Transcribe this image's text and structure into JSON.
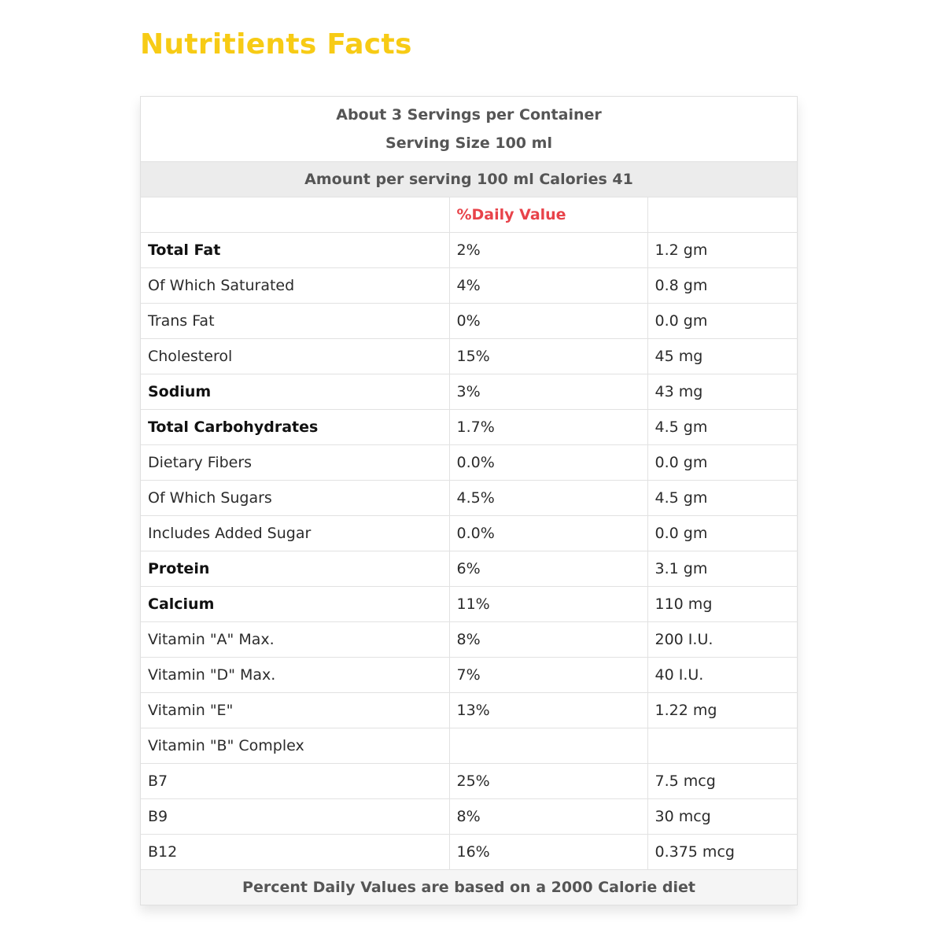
{
  "title": "Nutritients Facts",
  "servings": {
    "per_container": "About 3 Servings per Container",
    "size": "Serving Size 100 ml"
  },
  "amount_line": "Amount per serving 100 ml Calories 41",
  "header": {
    "col1": "",
    "col2": "%Daily Value",
    "col3": ""
  },
  "rows": [
    {
      "nutrient": "Total Fat",
      "dv": "2%",
      "amount": "1.2 gm",
      "bold": true
    },
    {
      "nutrient": "Of Which Saturated",
      "dv": "4%",
      "amount": "0.8 gm",
      "bold": false
    },
    {
      "nutrient": "Trans Fat",
      "dv": "0%",
      "amount": "0.0 gm",
      "bold": false
    },
    {
      "nutrient": "Cholesterol",
      "dv": "15%",
      "amount": "45 mg",
      "bold": false
    },
    {
      "nutrient": "Sodium",
      "dv": "3%",
      "amount": "43 mg",
      "bold": true
    },
    {
      "nutrient": "Total Carbohydrates",
      "dv": "1.7%",
      "amount": "4.5 gm",
      "bold": true
    },
    {
      "nutrient": "Dietary Fibers",
      "dv": "0.0%",
      "amount": "0.0 gm",
      "bold": false
    },
    {
      "nutrient": "Of Which Sugars",
      "dv": "4.5%",
      "amount": "4.5 gm",
      "bold": false
    },
    {
      "nutrient": "Includes Added Sugar",
      "dv": "0.0%",
      "amount": "0.0 gm",
      "bold": false
    },
    {
      "nutrient": "Protein",
      "dv": "6%",
      "amount": "3.1 gm",
      "bold": true
    },
    {
      "nutrient": "Calcium",
      "dv": "11%",
      "amount": "110 mg",
      "bold": true
    },
    {
      "nutrient": "Vitamin \"A\" Max.",
      "dv": "8%",
      "amount": "200 I.U.",
      "bold": false
    },
    {
      "nutrient": "Vitamin \"D\" Max.",
      "dv": "7%",
      "amount": "40 I.U.",
      "bold": false
    },
    {
      "nutrient": "Vitamin \"E\"",
      "dv": "13%",
      "amount": "1.22 mg",
      "bold": false
    },
    {
      "nutrient": "Vitamin \"B\" Complex",
      "dv": "",
      "amount": "",
      "bold": false
    },
    {
      "nutrient": "B7",
      "dv": "25%",
      "amount": "7.5 mcg",
      "bold": false
    },
    {
      "nutrient": "B9",
      "dv": "8%",
      "amount": "30 mcg",
      "bold": false
    },
    {
      "nutrient": "B12",
      "dv": "16%",
      "amount": "0.375 mcg",
      "bold": false
    }
  ],
  "footer": "Percent Daily Values are based on a 2000 Calorie diet",
  "colors": {
    "title": "#f7cb15",
    "daily_value": "#e8434a",
    "band": "#ececec"
  }
}
